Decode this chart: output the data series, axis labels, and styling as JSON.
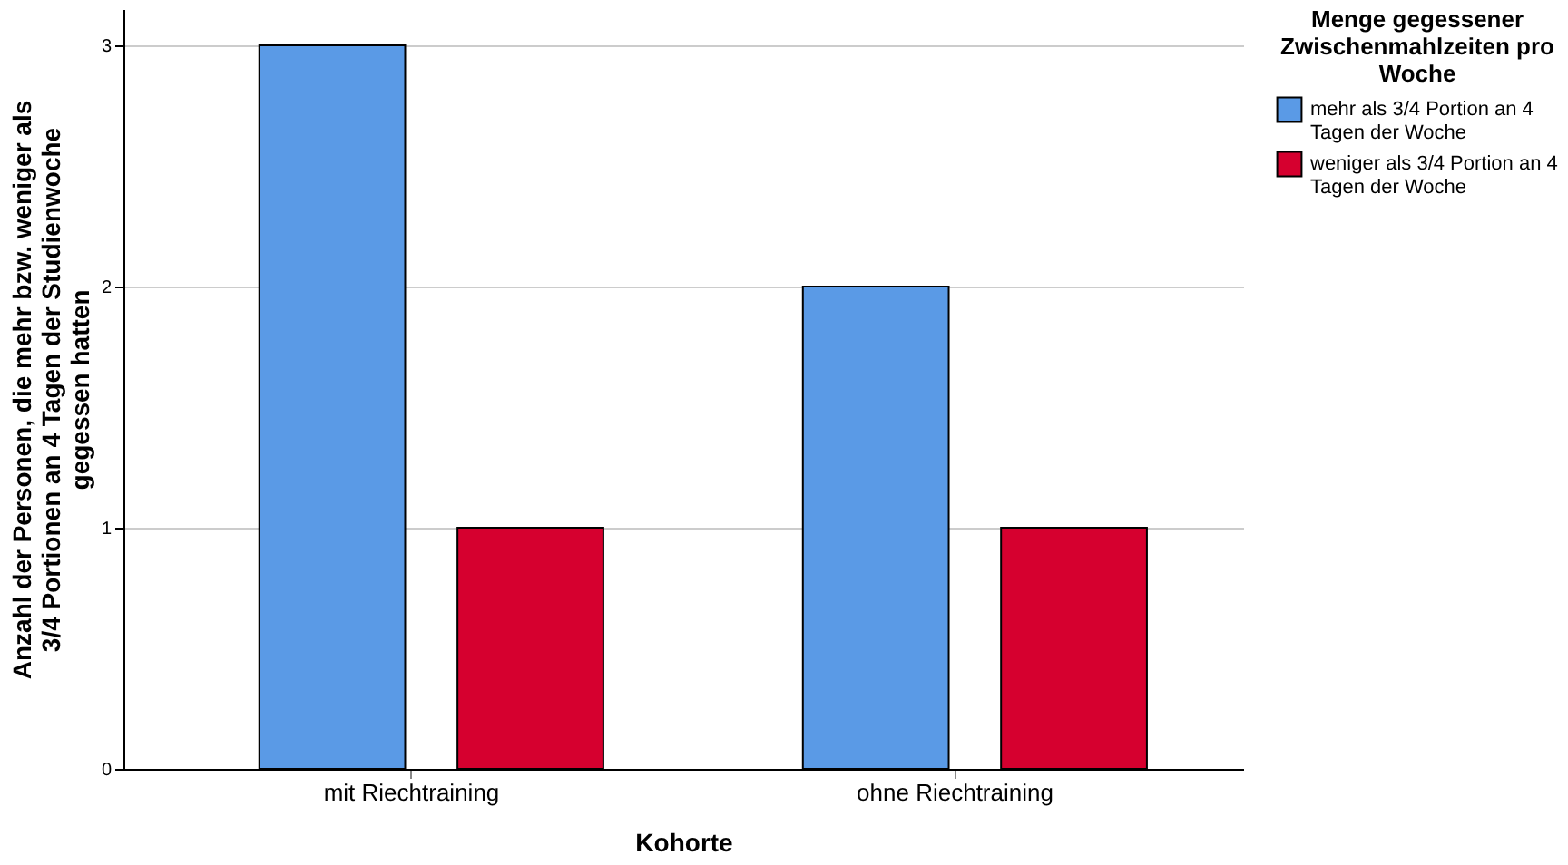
{
  "chart_data": {
    "type": "bar",
    "xlabel": "Kohorte",
    "ylabel": "Anzahl der Personen, die mehr bzw. weniger als 3/4 Portionen an 4 Tagen der Studienwoche gegessen hatten",
    "legend_title": "Menge gegessener Zwischenmahlzeiten pro Woche",
    "categories": [
      "mit Riechtraining",
      "ohne Riechtraining"
    ],
    "series": [
      {
        "name": "mehr als 3/4 Portion an 4 Tagen der Woche",
        "color": "#5a9ae6",
        "values": [
          3,
          2
        ]
      },
      {
        "name": "weniger als 3/4 Portion an 4 Tagen der Woche",
        "color": "#d6002f",
        "values": [
          1,
          1
        ]
      }
    ],
    "ylim": [
      0,
      3.15
    ],
    "yticks": [
      0,
      1,
      2,
      3
    ],
    "grid": "y",
    "legend": "right"
  }
}
